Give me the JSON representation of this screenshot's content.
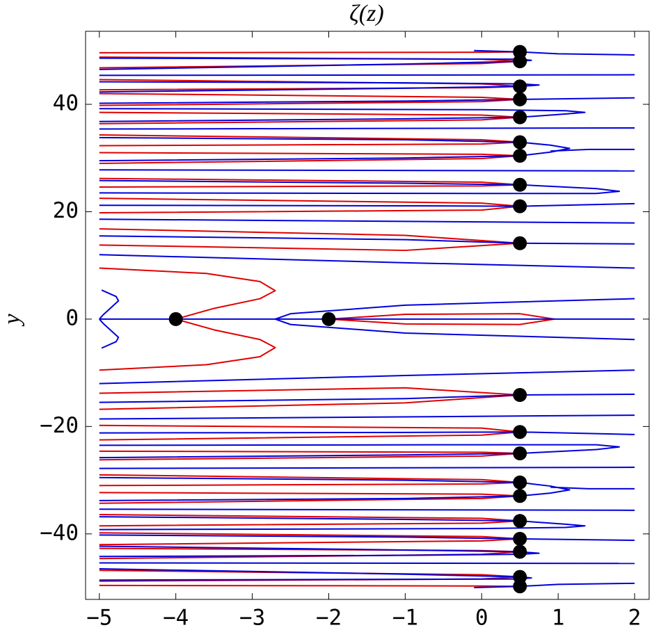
{
  "chart_data": {
    "type": "contour",
    "title": "ζ(z)",
    "y_label": "y",
    "xlim": [
      -5.18,
      2.19
    ],
    "ylim": [
      -52.2,
      53.6
    ],
    "xticks": [
      {
        "value": -5,
        "label": "−5"
      },
      {
        "value": -4,
        "label": "−4"
      },
      {
        "value": -3,
        "label": "−3"
      },
      {
        "value": -2,
        "label": "−2"
      },
      {
        "value": -1,
        "label": "−1"
      },
      0,
      1,
      2
    ],
    "yticks": [
      {
        "value": -40,
        "label": "−40"
      },
      {
        "value": -20,
        "label": "−20"
      },
      0,
      20,
      40
    ],
    "series": [
      {
        "color": "#e00000",
        "curves": [
          {
            "x": [
              -2,
              -1,
              0.5,
              0.95,
              0.5,
              -1,
              -2
            ],
            "y": [
              0,
              0.9,
              1,
              0,
              -1,
              -0.9,
              0
            ]
          },
          {
            "x": [
              -5,
              -3.6,
              -2.9,
              -2.7,
              -2.9,
              -3.5,
              -4
            ],
            "y": [
              9.5,
              8.5,
              7,
              5.3,
              3.8,
              2,
              0
            ]
          },
          {
            "x": [
              -5,
              -3.6,
              -2.9,
              -2.7,
              -2.9,
              -3.5,
              -4
            ],
            "y": [
              -9.5,
              -8.5,
              -7,
              -5.3,
              -3.8,
              -2,
              0
            ]
          },
          {
            "x": [
              -5,
              -1,
              0.5
            ],
            "y": [
              16.8,
              15.6,
              14.13
            ]
          },
          {
            "x": [
              -5,
              -1,
              0.5
            ],
            "y": [
              13.8,
              12.8,
              14.13
            ]
          },
          {
            "x": [
              -5,
              0,
              0.5
            ],
            "y": [
              22.5,
              21.6,
              21.02
            ]
          },
          {
            "x": [
              -5,
              0,
              0.5
            ],
            "y": [
              19.8,
              20.3,
              21.02
            ]
          },
          {
            "x": [
              -5,
              0,
              0.5
            ],
            "y": [
              26.2,
              25.5,
              25.01
            ]
          },
          {
            "x": [
              -5,
              0,
              0.5
            ],
            "y": [
              24.6,
              24.8,
              25.01
            ]
          },
          {
            "x": [
              -5,
              0,
              0.5
            ],
            "y": [
              31,
              30.7,
              30.42
            ]
          },
          {
            "x": [
              -5,
              0,
              0.5
            ],
            "y": [
              29,
              29.9,
              30.42
            ]
          },
          {
            "x": [
              -5,
              0,
              0.5
            ],
            "y": [
              34.3,
              33.4,
              32.94
            ]
          },
          {
            "x": [
              -5,
              0,
              0.5
            ],
            "y": [
              32.3,
              32.6,
              32.94
            ]
          },
          {
            "x": [
              -5,
              0,
              0.5
            ],
            "y": [
              38.5,
              38,
              37.59
            ]
          },
          {
            "x": [
              -5,
              0,
              0.5
            ],
            "y": [
              36.4,
              37.1,
              37.59
            ]
          },
          {
            "x": [
              -5,
              0,
              0.5
            ],
            "y": [
              42,
              41.3,
              40.92
            ]
          },
          {
            "x": [
              -5,
              0,
              0.5
            ],
            "y": [
              39.8,
              40.5,
              40.92
            ]
          },
          {
            "x": [
              -5,
              0,
              0.5
            ],
            "y": [
              44.6,
              43.8,
              43.33
            ]
          },
          {
            "x": [
              -5,
              0,
              0.5
            ],
            "y": [
              42.7,
              43.1,
              43.33
            ]
          },
          {
            "x": [
              -5,
              0,
              0.5
            ],
            "y": [
              48.8,
              48.4,
              48.01
            ]
          },
          {
            "x": [
              -5,
              0,
              0.5
            ],
            "y": [
              46.8,
              47.6,
              48.01
            ]
          },
          {
            "x": [
              -5,
              0,
              0.5
            ],
            "y": [
              49.6,
              49.7,
              49.77
            ]
          },
          {
            "x": [
              -5,
              -1,
              0.5
            ],
            "y": [
              -16.8,
              -15.6,
              -14.13
            ]
          },
          {
            "x": [
              -5,
              -1,
              0.5
            ],
            "y": [
              -13.8,
              -12.8,
              -14.13
            ]
          },
          {
            "x": [
              -5,
              0,
              0.5
            ],
            "y": [
              -22.5,
              -21.6,
              -21.02
            ]
          },
          {
            "x": [
              -5,
              0,
              0.5
            ],
            "y": [
              -19.8,
              -20.3,
              -21.02
            ]
          },
          {
            "x": [
              -5,
              0,
              0.5
            ],
            "y": [
              -26.2,
              -25.5,
              -25.01
            ]
          },
          {
            "x": [
              -5,
              0,
              0.5
            ],
            "y": [
              -24.6,
              -24.8,
              -25.01
            ]
          },
          {
            "x": [
              -5,
              0,
              0.5
            ],
            "y": [
              -31,
              -30.7,
              -30.42
            ]
          },
          {
            "x": [
              -5,
              0,
              0.5
            ],
            "y": [
              -29,
              -29.9,
              -30.42
            ]
          },
          {
            "x": [
              -5,
              0,
              0.5
            ],
            "y": [
              -34.3,
              -33.4,
              -32.94
            ]
          },
          {
            "x": [
              -5,
              0,
              0.5
            ],
            "y": [
              -32.3,
              -32.6,
              -32.94
            ]
          },
          {
            "x": [
              -5,
              0,
              0.5
            ],
            "y": [
              -38.5,
              -38,
              -37.59
            ]
          },
          {
            "x": [
              -5,
              0,
              0.5
            ],
            "y": [
              -36.4,
              -37.1,
              -37.59
            ]
          },
          {
            "x": [
              -5,
              0,
              0.5
            ],
            "y": [
              -42,
              -41.3,
              -40.92
            ]
          },
          {
            "x": [
              -5,
              0,
              0.5
            ],
            "y": [
              -39.8,
              -40.5,
              -40.92
            ]
          },
          {
            "x": [
              -5,
              0,
              0.5
            ],
            "y": [
              -44.6,
              -43.8,
              -43.33
            ]
          },
          {
            "x": [
              -5,
              0,
              0.5
            ],
            "y": [
              -42.7,
              -43.1,
              -43.33
            ]
          },
          {
            "x": [
              -5,
              0,
              0.5
            ],
            "y": [
              -48.8,
              -48.4,
              -48.01
            ]
          },
          {
            "x": [
              -5,
              0,
              0.5
            ],
            "y": [
              -46.8,
              -47.6,
              -48.01
            ]
          },
          {
            "x": [
              -5,
              0,
              0.5
            ],
            "y": [
              -49.6,
              -49.7,
              -49.77
            ]
          }
        ]
      },
      {
        "color": "#0000dd",
        "curves": [
          {
            "x": [
              -5,
              2
            ],
            "y": [
              0,
              0
            ]
          },
          {
            "x": [
              2,
              -1,
              -2.5,
              -2.7,
              -2.5,
              -1,
              2
            ],
            "y": [
              3.8,
              2.6,
              1,
              0,
              -1,
              -2.6,
              -3.8
            ]
          },
          {
            "x": [
              -4.97,
              -4.78,
              -4.75,
              -4.95,
              -5
            ],
            "y": [
              5.4,
              4.2,
              3.4,
              0.8,
              0
            ]
          },
          {
            "x": [
              -4.97,
              -4.78,
              -4.75,
              -4.95,
              -5
            ],
            "y": [
              -5.4,
              -4.2,
              -3.4,
              -0.8,
              0
            ]
          },
          {
            "x": [
              -5,
              -1,
              2
            ],
            "y": [
              12,
              10.5,
              9.5
            ]
          },
          {
            "x": [
              -5,
              -1,
              0.5,
              2
            ],
            "y": [
              15.5,
              14.8,
              14.13,
              14
            ]
          },
          {
            "x": [
              -5,
              2
            ],
            "y": [
              18.6,
              17.9
            ]
          },
          {
            "x": [
              -5,
              -1,
              0.5,
              2
            ],
            "y": [
              21.2,
              21.1,
              21.02,
              21.5
            ]
          },
          {
            "x": [
              -5,
              -1,
              0.5,
              1.5,
              1.8,
              1.5,
              0,
              -5
            ],
            "y": [
              25.8,
              25.3,
              25.01,
              24.3,
              23.8,
              23.4,
              23.4,
              23.5
            ]
          },
          {
            "x": [
              -5,
              2
            ],
            "y": [
              27.8,
              27.6
            ]
          },
          {
            "x": [
              -5,
              -1,
              0.5,
              0.9,
              1.15,
              0.9,
              0.5,
              -1,
              -5
            ],
            "y": [
              29.5,
              30,
              30.42,
              31.1,
              31.8,
              32.4,
              32.94,
              33.4,
              33.8
            ]
          },
          {
            "x": [
              0.9,
              1.4,
              2
            ],
            "y": [
              31.3,
              31.6,
              31.6
            ]
          },
          {
            "x": [
              -5,
              2
            ],
            "y": [
              35.4,
              35.6
            ]
          },
          {
            "x": [
              -5,
              -1,
              0.5,
              1.1,
              1.35,
              1.1,
              0,
              -5
            ],
            "y": [
              36.8,
              37.3,
              37.59,
              38.2,
              38.5,
              38.8,
              39,
              39.2
            ]
          },
          {
            "x": [
              -5,
              -1,
              0.5,
              2
            ],
            "y": [
              40.2,
              40.6,
              40.92,
              41.2
            ]
          },
          {
            "x": [
              -5,
              -1,
              0.5,
              0.75,
              0.5,
              -1,
              -5
            ],
            "y": [
              42.3,
              43,
              43.33,
              43.6,
              43.8,
              44,
              44.2
            ]
          },
          {
            "x": [
              -5,
              2
            ],
            "y": [
              45.4,
              45.5
            ]
          },
          {
            "x": [
              -5,
              -1,
              0.5,
              0.65,
              0.5,
              -5
            ],
            "y": [
              46.5,
              47.5,
              48.01,
              48.2,
              48.4,
              48.6
            ]
          },
          {
            "x": [
              -0.1,
              0.5,
              1,
              2
            ],
            "y": [
              50,
              49.77,
              49.4,
              49.2
            ]
          },
          {
            "x": [
              -5,
              -1,
              2
            ],
            "y": [
              -12,
              -10.5,
              -9.5
            ]
          },
          {
            "x": [
              -5,
              -1,
              0.5,
              2
            ],
            "y": [
              -15.5,
              -14.8,
              -14.13,
              -14
            ]
          },
          {
            "x": [
              -5,
              2
            ],
            "y": [
              -18.6,
              -17.9
            ]
          },
          {
            "x": [
              -5,
              -1,
              0.5,
              2
            ],
            "y": [
              -21.2,
              -21.1,
              -21.02,
              -21.5
            ]
          },
          {
            "x": [
              -5,
              -1,
              0.5,
              1.5,
              1.8,
              1.5,
              0,
              -5
            ],
            "y": [
              -25.8,
              -25.3,
              -25.01,
              -24.3,
              -23.8,
              -23.4,
              -23.4,
              -23.5
            ]
          },
          {
            "x": [
              -5,
              2
            ],
            "y": [
              -27.8,
              -27.6
            ]
          },
          {
            "x": [
              -5,
              -1,
              0.5,
              0.9,
              1.15,
              0.9,
              0.5,
              -1,
              -5
            ],
            "y": [
              -29.5,
              -30,
              -30.42,
              -31.1,
              -31.8,
              -32.4,
              -32.94,
              -33.4,
              -33.8
            ]
          },
          {
            "x": [
              0.9,
              1.4,
              2
            ],
            "y": [
              -31.3,
              -31.6,
              -31.6
            ]
          },
          {
            "x": [
              -5,
              2
            ],
            "y": [
              -35.4,
              -35.6
            ]
          },
          {
            "x": [
              -5,
              -1,
              0.5,
              1.1,
              1.35,
              1.1,
              0,
              -5
            ],
            "y": [
              -36.8,
              -37.3,
              -37.59,
              -38.2,
              -38.5,
              -38.8,
              -39,
              -39.2
            ]
          },
          {
            "x": [
              -5,
              -1,
              0.5,
              2
            ],
            "y": [
              -40.2,
              -40.6,
              -40.92,
              -41.2
            ]
          },
          {
            "x": [
              -5,
              -1,
              0.5,
              0.75,
              0.5,
              -1,
              -5
            ],
            "y": [
              -42.3,
              -43,
              -43.33,
              -43.6,
              -43.8,
              -44,
              -44.2
            ]
          },
          {
            "x": [
              -5,
              2
            ],
            "y": [
              -45.4,
              -45.5
            ]
          },
          {
            "x": [
              -5,
              -1,
              0.5,
              0.65,
              0.5,
              -5
            ],
            "y": [
              -46.5,
              -47.5,
              -48.01,
              -48.2,
              -48.4,
              -48.6
            ]
          },
          {
            "x": [
              -0.1,
              0.5,
              1,
              2
            ],
            "y": [
              -50,
              -49.77,
              -49.4,
              -49.2
            ]
          }
        ]
      }
    ],
    "points": {
      "color": "#000000",
      "x": [
        -4,
        -2,
        0.5,
        0.5,
        0.5,
        0.5,
        0.5,
        0.5,
        0.5,
        0.5,
        0.5,
        0.5,
        0.5,
        0.5,
        0.5,
        0.5,
        0.5,
        0.5,
        0.5,
        0.5,
        0.5,
        0.5
      ],
      "y": [
        0,
        0,
        14.13,
        21.02,
        25.01,
        30.42,
        32.94,
        37.59,
        40.92,
        43.33,
        48.01,
        49.77,
        -14.13,
        -21.02,
        -25.01,
        -30.42,
        -32.94,
        -37.59,
        -40.92,
        -43.33,
        -48.01,
        -49.77
      ]
    }
  }
}
